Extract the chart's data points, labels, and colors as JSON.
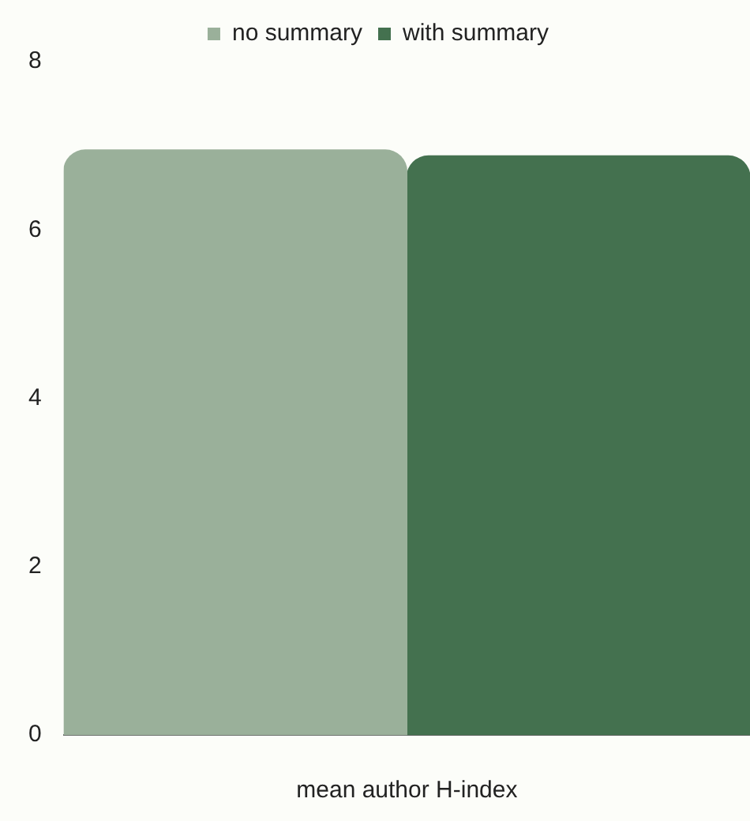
{
  "chart_data": {
    "type": "bar",
    "xlabel": "mean author H-index",
    "categories": [
      null
    ],
    "series": [
      {
        "name": "no summary",
        "color": "#9ab09a",
        "values": [
          6.95
        ]
      },
      {
        "name": "with summary",
        "color": "#44714f",
        "values": [
          6.88
        ]
      }
    ],
    "ylim": [
      0,
      8
    ],
    "yticks": [
      0,
      2,
      4,
      6,
      8
    ],
    "legend": "top"
  }
}
